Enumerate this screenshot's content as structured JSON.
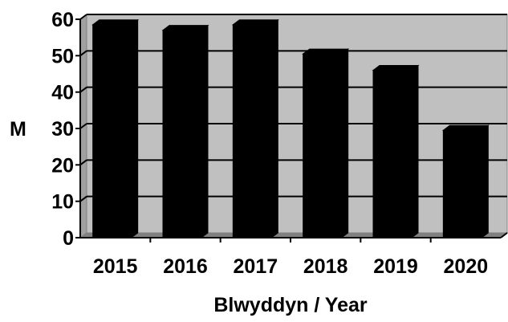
{
  "chart_data": {
    "type": "bar",
    "categories": [
      "2015",
      "2016",
      "2017",
      "2018",
      "2019",
      "2020"
    ],
    "values": [
      58.5,
      57,
      58.5,
      50.5,
      46,
      29.5
    ],
    "xlabel": "Blwyddyn / Year",
    "ylabel": "M",
    "ylim": [
      0,
      60
    ],
    "yticks": [
      "0",
      "10",
      "20",
      "30",
      "40",
      "50",
      "60"
    ],
    "grid": true,
    "legend": "none",
    "colors": {
      "bar_front": "#000000",
      "bar_side": "#000000",
      "bar_top": "#000000",
      "plot_back": "#c0c0c0",
      "floor": "#808080",
      "gridline": "#000000"
    }
  }
}
